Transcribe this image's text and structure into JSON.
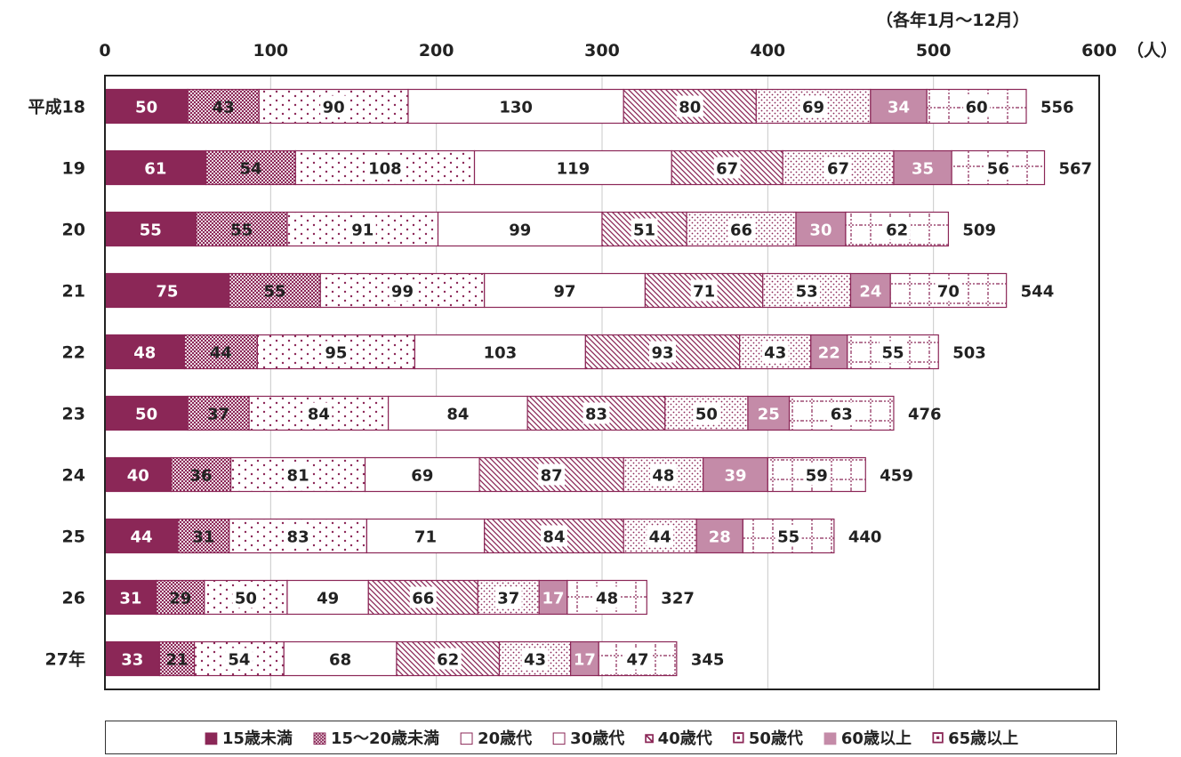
{
  "chart_data": {
    "type": "bar",
    "orientation": "horizontal",
    "stacked": true,
    "period_note": "（各年1月～12月）",
    "unit_label": "（人）",
    "xlim": [
      0,
      600
    ],
    "x_ticks": [
      "0",
      "100",
      "200",
      "300",
      "400",
      "500",
      "600"
    ],
    "categories": [
      "平成18",
      "19",
      "20",
      "21",
      "22",
      "23",
      "24",
      "25",
      "26",
      "27年"
    ],
    "series": [
      {
        "name": "15歳未満",
        "values": [
          50,
          61,
          55,
          75,
          48,
          50,
          40,
          44,
          31,
          33
        ],
        "color": "#8B2757",
        "pattern": "solid"
      },
      {
        "name": "15～20歳未満",
        "values": [
          43,
          54,
          55,
          55,
          44,
          37,
          36,
          31,
          29,
          21
        ],
        "color": "#8B2757",
        "pattern": "checker"
      },
      {
        "name": "20歳代",
        "values": [
          90,
          108,
          91,
          99,
          95,
          84,
          81,
          83,
          50,
          54
        ],
        "color": "#8B2757",
        "pattern": "dots"
      },
      {
        "name": "30歳代",
        "values": [
          130,
          119,
          99,
          97,
          103,
          84,
          69,
          71,
          49,
          68
        ],
        "color": "#8B2757",
        "pattern": "none"
      },
      {
        "name": "40歳代",
        "values": [
          80,
          67,
          51,
          71,
          93,
          83,
          87,
          84,
          66,
          62
        ],
        "color": "#8B2757",
        "pattern": "diagonal"
      },
      {
        "name": "50歳代",
        "values": [
          69,
          67,
          66,
          53,
          43,
          50,
          48,
          44,
          37,
          43
        ],
        "color": "#8B2757",
        "pattern": "finedots"
      },
      {
        "name": "60歳以上",
        "values": [
          34,
          35,
          30,
          24,
          22,
          25,
          39,
          28,
          17,
          17
        ],
        "color": "#C48BA8",
        "pattern": "solid"
      },
      {
        "name": "65歳以上",
        "values": [
          60,
          56,
          62,
          70,
          55,
          63,
          59,
          55,
          48,
          47
        ],
        "color": "#8B2757",
        "pattern": "dashgrid"
      }
    ],
    "totals": [
      556,
      567,
      509,
      544,
      503,
      476,
      459,
      440,
      327,
      345
    ],
    "grid": true,
    "legend_position": "bottom",
    "legend_marks": [
      "■",
      "▩",
      "□",
      "□",
      "⧅",
      "⊡",
      "■",
      "⊡"
    ]
  }
}
